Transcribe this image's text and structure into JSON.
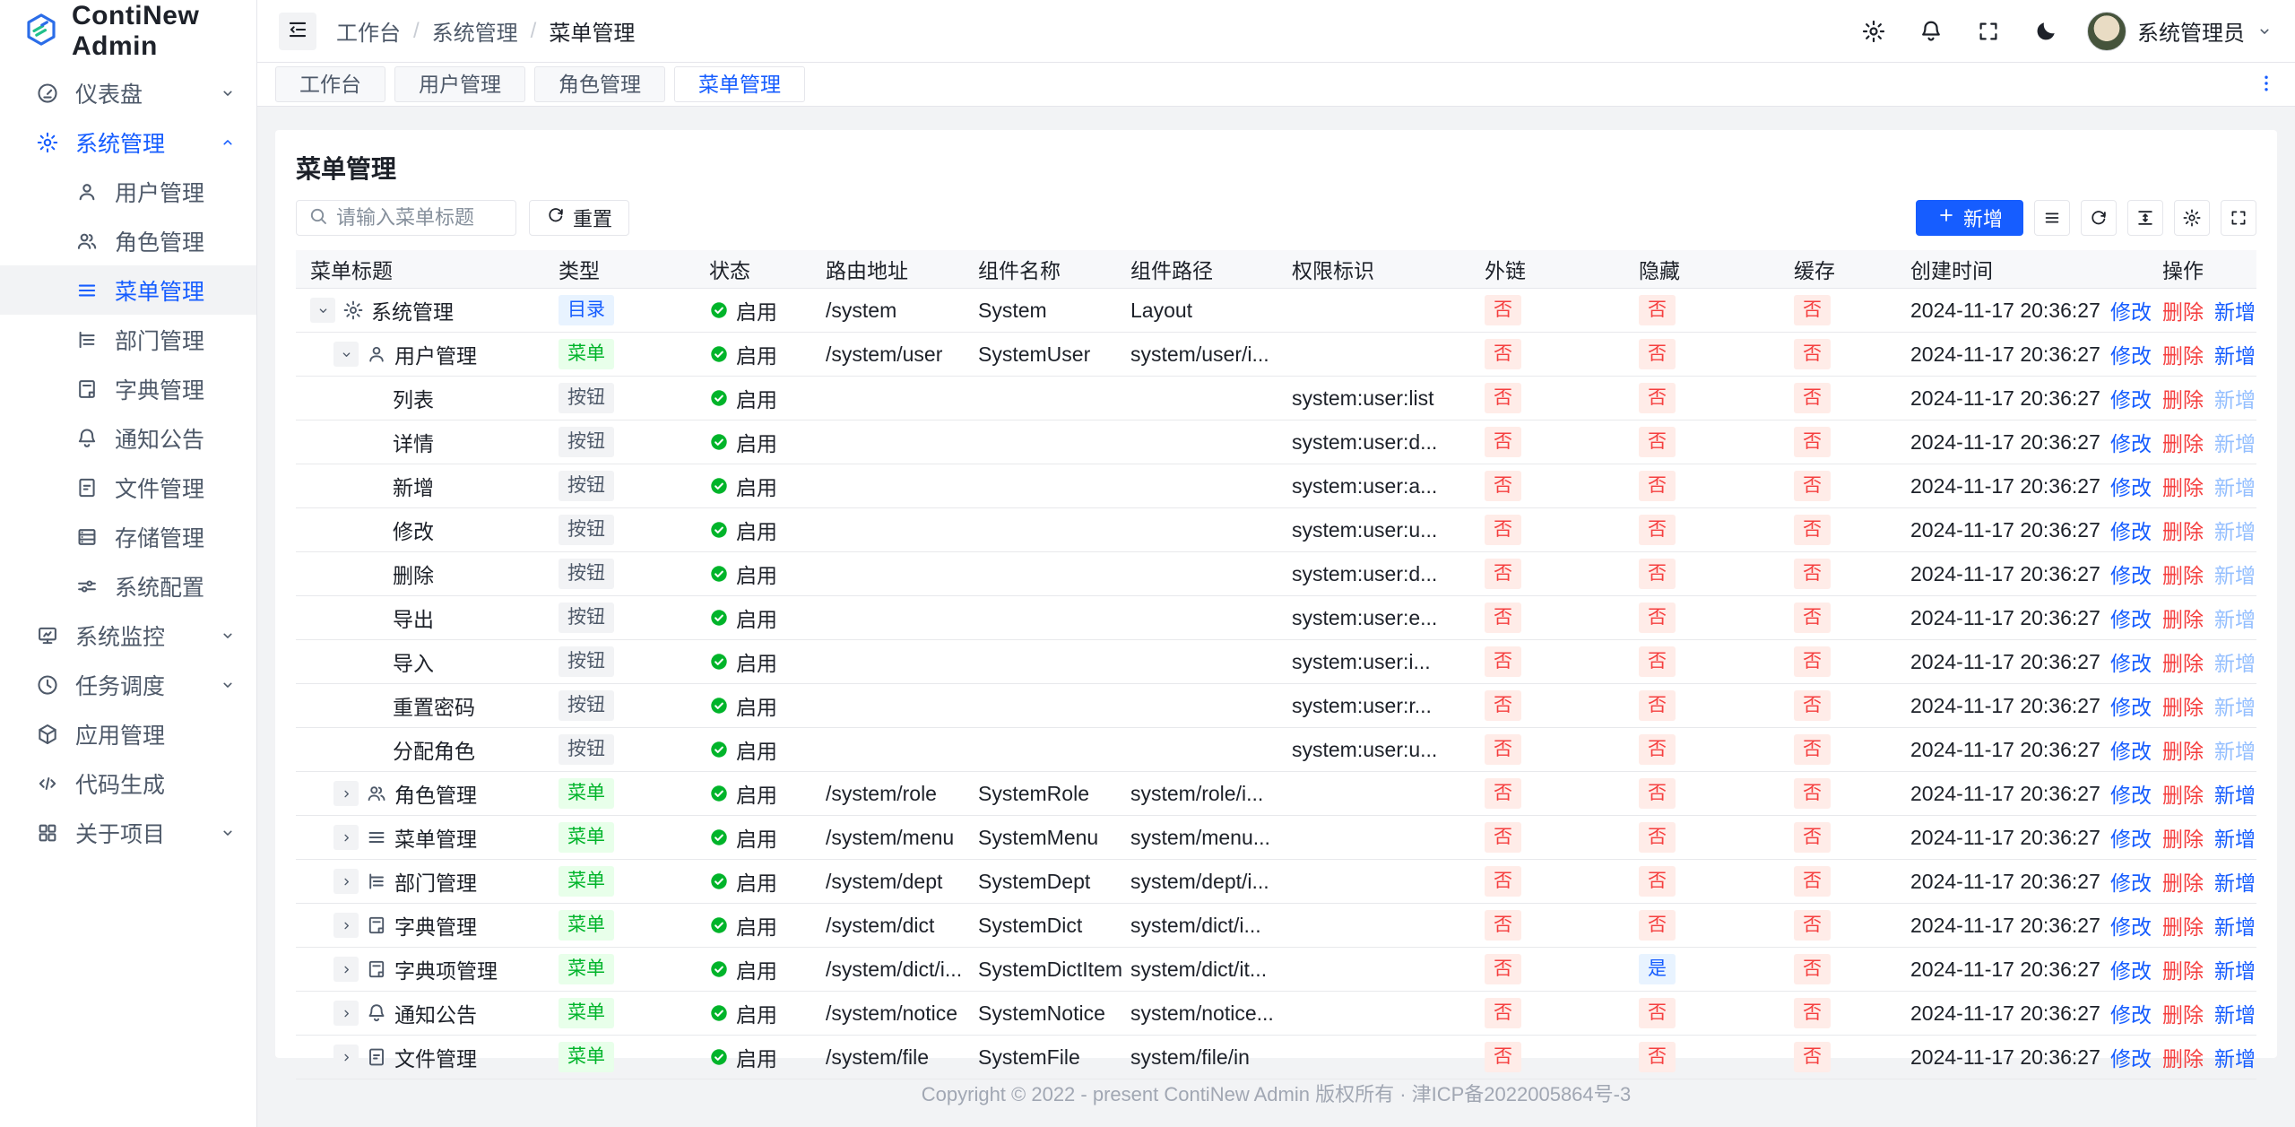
{
  "app": {
    "name": "ContiNew Admin"
  },
  "header": {
    "breadcrumb": [
      "工作台",
      "系统管理",
      "菜单管理"
    ],
    "actions": [
      {
        "id": "settings",
        "icon": "gear-icon"
      },
      {
        "id": "notifications",
        "icon": "bell-icon"
      },
      {
        "id": "fullscreen",
        "icon": "fullscreen-icon"
      },
      {
        "id": "dark-mode",
        "icon": "moon-icon"
      }
    ],
    "user": {
      "name": "系统管理员"
    }
  },
  "sidebar": {
    "items": [
      {
        "id": "dashboard",
        "label": "仪表盘",
        "icon": "dashboard-icon",
        "chevron": "down"
      },
      {
        "id": "system-management",
        "label": "系统管理",
        "icon": "gear-icon",
        "chevron": "up",
        "active": true,
        "children": [
          {
            "id": "user-management",
            "label": "用户管理",
            "icon": "user-icon"
          },
          {
            "id": "role-management",
            "label": "角色管理",
            "icon": "users-icon"
          },
          {
            "id": "menu-management",
            "label": "菜单管理",
            "icon": "menu-icon",
            "selected": true
          },
          {
            "id": "dept-management",
            "label": "部门管理",
            "icon": "tree-icon"
          },
          {
            "id": "dict-management",
            "label": "字典管理",
            "icon": "dict-icon"
          },
          {
            "id": "notice",
            "label": "通知公告",
            "icon": "bell-icon"
          },
          {
            "id": "file-management",
            "label": "文件管理",
            "icon": "file-icon"
          },
          {
            "id": "storage-management",
            "label": "存储管理",
            "icon": "storage-icon"
          },
          {
            "id": "system-config",
            "label": "系统配置",
            "icon": "sliders-icon"
          }
        ]
      },
      {
        "id": "system-monitor",
        "label": "系统监控",
        "icon": "monitor-icon",
        "chevron": "down"
      },
      {
        "id": "task-schedule",
        "label": "任务调度",
        "icon": "clock-icon",
        "chevron": "down"
      },
      {
        "id": "app-management",
        "label": "应用管理",
        "icon": "cube-icon"
      },
      {
        "id": "code-generation",
        "label": "代码生成",
        "icon": "code-icon"
      },
      {
        "id": "about-project",
        "label": "关于项目",
        "icon": "grid-icon",
        "chevron": "down"
      }
    ]
  },
  "tabs": {
    "items": [
      {
        "id": "workbench",
        "label": "工作台"
      },
      {
        "id": "user-management",
        "label": "用户管理"
      },
      {
        "id": "role-management",
        "label": "角色管理"
      },
      {
        "id": "menu-management",
        "label": "菜单管理",
        "active": true
      }
    ]
  },
  "page": {
    "title": "菜单管理"
  },
  "search": {
    "placeholder": "请输入菜单标题",
    "reset_label": "重置"
  },
  "toolbar": {
    "add_label": "新增",
    "icon_buttons": [
      {
        "id": "list",
        "icon": "list-icon"
      },
      {
        "id": "refresh",
        "icon": "refresh-icon"
      },
      {
        "id": "row-height",
        "icon": "line-height-icon"
      },
      {
        "id": "column-settings",
        "icon": "gear-icon"
      },
      {
        "id": "table-fullscreen",
        "icon": "fullscreen-icon"
      }
    ]
  },
  "table": {
    "columns": [
      "菜单标题",
      "类型",
      "状态",
      "路由地址",
      "组件名称",
      "组件路径",
      "权限标识",
      "外链",
      "隐藏",
      "缓存",
      "创建时间",
      "操作"
    ],
    "ops": {
      "edit": "修改",
      "del": "删除",
      "add": "新增"
    },
    "rows": [
      {
        "indent": 0,
        "expand": "down",
        "icon": "gear-icon",
        "title": "系统管理",
        "type": "目录",
        "status": "启用",
        "route": "/system",
        "component": "System",
        "path": "Layout",
        "perm": "",
        "external": "否",
        "hidden": "否",
        "cache": "否",
        "created": "2024-11-17 20:36:27",
        "add_disabled": false
      },
      {
        "indent": 1,
        "expand": "down",
        "icon": "user-icon",
        "title": "用户管理",
        "type": "菜单",
        "status": "启用",
        "route": "/system/user",
        "component": "SystemUser",
        "path": "system/user/i...",
        "perm": "",
        "external": "否",
        "hidden": "否",
        "cache": "否",
        "created": "2024-11-17 20:36:27",
        "add_disabled": false
      },
      {
        "indent": 2,
        "expand": null,
        "icon": null,
        "title": "列表",
        "type": "按钮",
        "status": "启用",
        "route": "",
        "component": "",
        "path": "",
        "perm": "system:user:list",
        "external": "否",
        "hidden": "否",
        "cache": "否",
        "created": "2024-11-17 20:36:27",
        "add_disabled": true
      },
      {
        "indent": 2,
        "expand": null,
        "icon": null,
        "title": "详情",
        "type": "按钮",
        "status": "启用",
        "route": "",
        "component": "",
        "path": "",
        "perm": "system:user:d...",
        "external": "否",
        "hidden": "否",
        "cache": "否",
        "created": "2024-11-17 20:36:27",
        "add_disabled": true
      },
      {
        "indent": 2,
        "expand": null,
        "icon": null,
        "title": "新增",
        "type": "按钮",
        "status": "启用",
        "route": "",
        "component": "",
        "path": "",
        "perm": "system:user:a...",
        "external": "否",
        "hidden": "否",
        "cache": "否",
        "created": "2024-11-17 20:36:27",
        "add_disabled": true
      },
      {
        "indent": 2,
        "expand": null,
        "icon": null,
        "title": "修改",
        "type": "按钮",
        "status": "启用",
        "route": "",
        "component": "",
        "path": "",
        "perm": "system:user:u...",
        "external": "否",
        "hidden": "否",
        "cache": "否",
        "created": "2024-11-17 20:36:27",
        "add_disabled": true
      },
      {
        "indent": 2,
        "expand": null,
        "icon": null,
        "title": "删除",
        "type": "按钮",
        "status": "启用",
        "route": "",
        "component": "",
        "path": "",
        "perm": "system:user:d...",
        "external": "否",
        "hidden": "否",
        "cache": "否",
        "created": "2024-11-17 20:36:27",
        "add_disabled": true
      },
      {
        "indent": 2,
        "expand": null,
        "icon": null,
        "title": "导出",
        "type": "按钮",
        "status": "启用",
        "route": "",
        "component": "",
        "path": "",
        "perm": "system:user:e...",
        "external": "否",
        "hidden": "否",
        "cache": "否",
        "created": "2024-11-17 20:36:27",
        "add_disabled": true
      },
      {
        "indent": 2,
        "expand": null,
        "icon": null,
        "title": "导入",
        "type": "按钮",
        "status": "启用",
        "route": "",
        "component": "",
        "path": "",
        "perm": "system:user:i...",
        "external": "否",
        "hidden": "否",
        "cache": "否",
        "created": "2024-11-17 20:36:27",
        "add_disabled": true
      },
      {
        "indent": 2,
        "expand": null,
        "icon": null,
        "title": "重置密码",
        "type": "按钮",
        "status": "启用",
        "route": "",
        "component": "",
        "path": "",
        "perm": "system:user:r...",
        "external": "否",
        "hidden": "否",
        "cache": "否",
        "created": "2024-11-17 20:36:27",
        "add_disabled": true
      },
      {
        "indent": 2,
        "expand": null,
        "icon": null,
        "title": "分配角色",
        "type": "按钮",
        "status": "启用",
        "route": "",
        "component": "",
        "path": "",
        "perm": "system:user:u...",
        "external": "否",
        "hidden": "否",
        "cache": "否",
        "created": "2024-11-17 20:36:27",
        "add_disabled": true
      },
      {
        "indent": 1,
        "expand": "right",
        "icon": "users-icon",
        "title": "角色管理",
        "type": "菜单",
        "status": "启用",
        "route": "/system/role",
        "component": "SystemRole",
        "path": "system/role/i...",
        "perm": "",
        "external": "否",
        "hidden": "否",
        "cache": "否",
        "created": "2024-11-17 20:36:27",
        "add_disabled": false
      },
      {
        "indent": 1,
        "expand": "right",
        "icon": "menu-icon",
        "title": "菜单管理",
        "type": "菜单",
        "status": "启用",
        "route": "/system/menu",
        "component": "SystemMenu",
        "path": "system/menu...",
        "perm": "",
        "external": "否",
        "hidden": "否",
        "cache": "否",
        "created": "2024-11-17 20:36:27",
        "add_disabled": false
      },
      {
        "indent": 1,
        "expand": "right",
        "icon": "tree-icon",
        "title": "部门管理",
        "type": "菜单",
        "status": "启用",
        "route": "/system/dept",
        "component": "SystemDept",
        "path": "system/dept/i...",
        "perm": "",
        "external": "否",
        "hidden": "否",
        "cache": "否",
        "created": "2024-11-17 20:36:27",
        "add_disabled": false
      },
      {
        "indent": 1,
        "expand": "right",
        "icon": "dict-icon",
        "title": "字典管理",
        "type": "菜单",
        "status": "启用",
        "route": "/system/dict",
        "component": "SystemDict",
        "path": "system/dict/i...",
        "perm": "",
        "external": "否",
        "hidden": "否",
        "cache": "否",
        "created": "2024-11-17 20:36:27",
        "add_disabled": false
      },
      {
        "indent": 1,
        "expand": "right",
        "icon": "dict-icon",
        "title": "字典项管理",
        "type": "菜单",
        "status": "启用",
        "route": "/system/dict/i...",
        "component": "SystemDictItem",
        "path": "system/dict/it...",
        "perm": "",
        "external": "否",
        "hidden": "是",
        "cache": "否",
        "created": "2024-11-17 20:36:27",
        "add_disabled": false
      },
      {
        "indent": 1,
        "expand": "right",
        "icon": "bell-icon",
        "title": "通知公告",
        "type": "菜单",
        "status": "启用",
        "route": "/system/notice",
        "component": "SystemNotice",
        "path": "system/notice...",
        "perm": "",
        "external": "否",
        "hidden": "否",
        "cache": "否",
        "created": "2024-11-17 20:36:27",
        "add_disabled": false
      },
      {
        "indent": 1,
        "expand": "right",
        "icon": "file-icon",
        "title": "文件管理",
        "type": "菜单",
        "status": "启用",
        "route": "/system/file",
        "component": "SystemFile",
        "path": "system/file/in",
        "perm": "",
        "external": "否",
        "hidden": "否",
        "cache": "否",
        "created": "2024-11-17 20:36:27",
        "add_disabled": false
      }
    ]
  },
  "footer": {
    "copyright": "Copyright © 2022 - present ContiNew Admin 版权所有 · 津ICP备2022005864号-3"
  },
  "colors": {
    "primary": "#165dff",
    "success": "#00b42a",
    "danger": "#f53f3f",
    "bg": "#f2f3f5",
    "border": "#e5e6eb",
    "badge_blue_bg": "#e8f3ff",
    "badge_green_bg": "#e8ffea",
    "badge_red_bg": "#ffece8",
    "badge_gray_bg": "#f2f3f5"
  }
}
